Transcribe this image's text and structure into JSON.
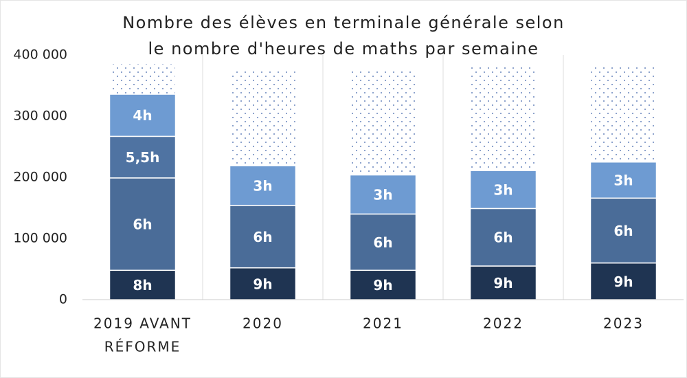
{
  "chart_data": {
    "type": "stacked-bar",
    "title": [
      "Nombre des élèves en terminale générale selon",
      "le nombre d'heures de maths par semaine"
    ],
    "categories": [
      [
        "2019 AVANT",
        "RÉFORME"
      ],
      [
        "2020"
      ],
      [
        "2021"
      ],
      [
        "2022"
      ],
      [
        "2023"
      ]
    ],
    "series": [
      {
        "color": "#1f3452",
        "values": [
          48000,
          52000,
          48000,
          55000,
          60000
        ],
        "labels": [
          "8h",
          "9h",
          "9h",
          "9h",
          "9h"
        ]
      },
      {
        "color": "#4a6c98",
        "values": [
          151000,
          102000,
          92000,
          94000,
          106000
        ],
        "labels": [
          "6h",
          "6h",
          "6h",
          "6h",
          "6h"
        ]
      },
      {
        "colors": [
          "#4f73a2",
          "#6e9bd2",
          "#6e9bd2",
          "#6e9bd2",
          "#6e9bd2"
        ],
        "values": [
          68000,
          65000,
          64000,
          62000,
          59000
        ],
        "labels": [
          "5,5h",
          "3h",
          "3h",
          "3h",
          "3h"
        ]
      },
      {
        "color": "#6e9bd2",
        "values": [
          69000,
          null,
          null,
          null,
          null
        ],
        "labels": [
          "4h",
          null,
          null,
          null,
          null
        ]
      },
      {
        "pattern": "dots",
        "color": "#3b5fa8",
        "values": [
          50000,
          156000,
          171000,
          171000,
          158000
        ]
      }
    ],
    "ylim": [
      0,
      400000
    ],
    "yticks": [
      0,
      {
        "value": 100000,
        "label": "100 000"
      },
      {
        "value": 200000,
        "label": "200 000"
      },
      {
        "value": 300000,
        "label": "300 000"
      },
      {
        "value": 400000,
        "label": "400 000"
      }
    ],
    "category_separators": true
  }
}
